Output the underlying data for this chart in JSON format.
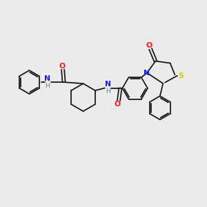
{
  "background_color": "#ebebeb",
  "bond_color": "#1a1a1a",
  "atom_colors": {
    "N": "#1a1aff",
    "O": "#ff1a1a",
    "S": "#cccc00",
    "H": "#1aaa8a",
    "C": "#1a1a1a"
  },
  "figsize": [
    3.0,
    3.0
  ],
  "dpi": 100,
  "lw": 1.3,
  "fs": 7.8
}
